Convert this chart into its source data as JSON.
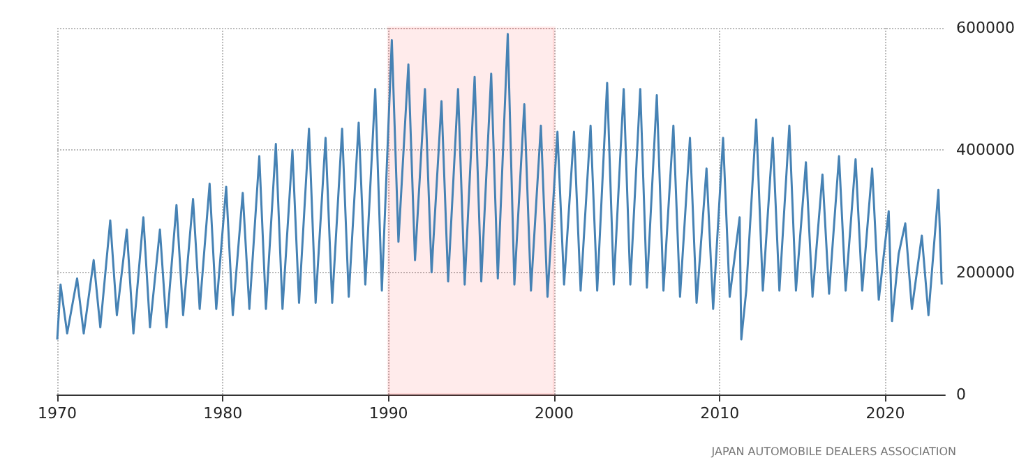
{
  "chart_data": {
    "type": "line",
    "x": [
      1970.0,
      1970.2,
      1970.6,
      1971.2,
      1971.6,
      1972.2,
      1972.6,
      1973.2,
      1973.6,
      1974.2,
      1974.6,
      1975.2,
      1975.6,
      1976.2,
      1976.6,
      1977.2,
      1977.6,
      1978.2,
      1978.6,
      1979.2,
      1979.6,
      1980.2,
      1980.6,
      1981.2,
      1981.6,
      1982.2,
      1982.6,
      1983.2,
      1983.6,
      1984.2,
      1984.6,
      1985.2,
      1985.6,
      1986.2,
      1986.6,
      1987.2,
      1987.6,
      1988.2,
      1988.6,
      1989.2,
      1989.6,
      1990.2,
      1990.6,
      1991.2,
      1991.6,
      1992.2,
      1992.6,
      1993.2,
      1993.6,
      1994.2,
      1994.6,
      1995.2,
      1995.6,
      1996.2,
      1996.6,
      1997.2,
      1997.6,
      1998.2,
      1998.6,
      1999.2,
      1999.6,
      2000.2,
      2000.6,
      2001.2,
      2001.6,
      2002.2,
      2002.6,
      2003.2,
      2003.6,
      2004.2,
      2004.6,
      2005.2,
      2005.6,
      2006.2,
      2006.6,
      2007.2,
      2007.6,
      2008.2,
      2008.6,
      2009.2,
      2009.6,
      2010.2,
      2010.6,
      2011.2,
      2011.3,
      2011.6,
      2012.2,
      2012.6,
      2013.2,
      2013.6,
      2014.2,
      2014.6,
      2015.2,
      2015.6,
      2016.2,
      2016.6,
      2017.2,
      2017.6,
      2018.2,
      2018.6,
      2019.2,
      2019.6,
      2020.2,
      2020.4,
      2020.8,
      2021.2,
      2021.6,
      2022.2,
      2022.6,
      2023.2,
      2023.4
    ],
    "series": [
      {
        "color": "#4682b4",
        "values": [
          90000,
          180000,
          100000,
          190000,
          100000,
          220000,
          110000,
          285000,
          130000,
          270000,
          100000,
          290000,
          110000,
          270000,
          110000,
          310000,
          130000,
          320000,
          140000,
          345000,
          140000,
          340000,
          130000,
          330000,
          140000,
          390000,
          140000,
          410000,
          140000,
          400000,
          150000,
          435000,
          150000,
          420000,
          150000,
          435000,
          160000,
          445000,
          180000,
          500000,
          170000,
          580000,
          250000,
          540000,
          220000,
          500000,
          200000,
          480000,
          185000,
          500000,
          180000,
          520000,
          185000,
          525000,
          190000,
          590000,
          180000,
          475000,
          170000,
          440000,
          160000,
          430000,
          180000,
          430000,
          170000,
          440000,
          170000,
          510000,
          180000,
          500000,
          180000,
          500000,
          175000,
          490000,
          170000,
          440000,
          160000,
          420000,
          150000,
          370000,
          140000,
          420000,
          160000,
          290000,
          90000,
          170000,
          450000,
          170000,
          420000,
          170000,
          440000,
          170000,
          380000,
          160000,
          360000,
          165000,
          390000,
          170000,
          385000,
          170000,
          370000,
          155000,
          300000,
          120000,
          230000,
          280000,
          140000,
          260000,
          130000,
          335000,
          180000
        ]
      }
    ],
    "xlim": [
      1970,
      2023.6
    ],
    "xticks": [
      1970,
      1980,
      1990,
      2000,
      2010,
      2020
    ],
    "ylim": [
      0,
      600000
    ],
    "yticks": [
      0,
      200000,
      400000,
      600000
    ],
    "grid": true,
    "bands": [
      {
        "axis": "x",
        "from": 1990,
        "to": 2000,
        "color": "#ff0000"
      }
    ],
    "annotations": [
      "JAPAN AUTOMOBILE DEALERS ASSOCIATION"
    ]
  }
}
